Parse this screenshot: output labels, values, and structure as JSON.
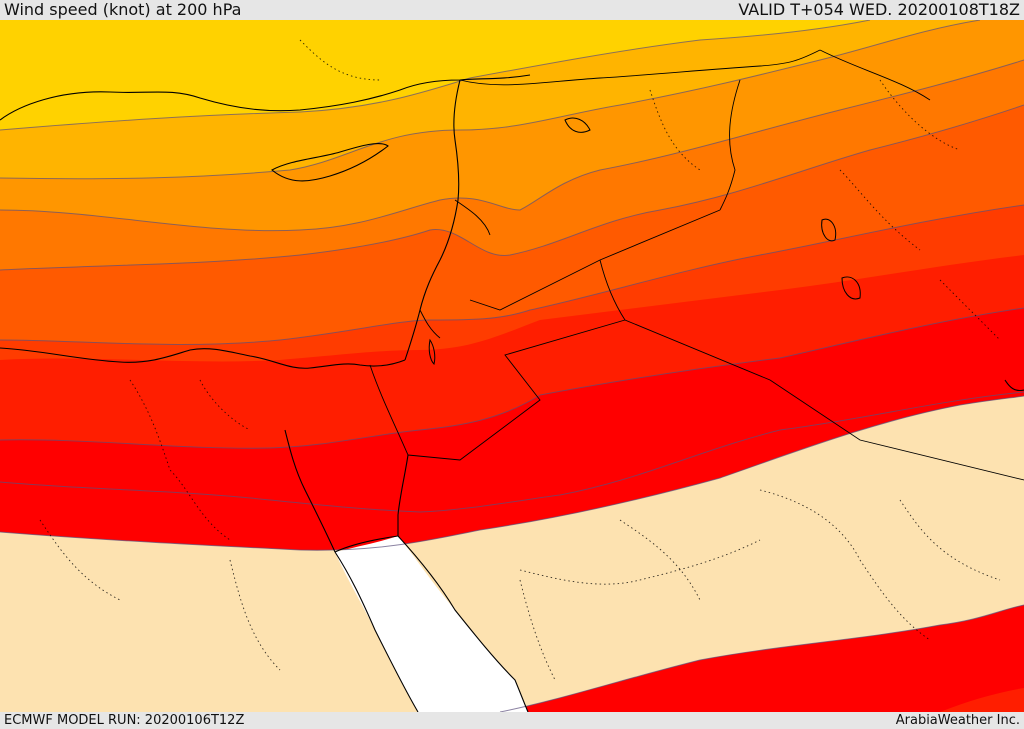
{
  "header": {
    "title": "Wind speed (knot) at 200 hPa",
    "valid": "VALID T+054 WED. 20200108T18Z"
  },
  "footer": {
    "run": "ECMWF MODEL RUN: 20200106T12Z",
    "credit": "ArabiaWeather Inc."
  },
  "colors": {
    "band_1": "#ffff00",
    "band_2": "#ffd200",
    "band_3": "#ffb400",
    "band_4": "#ff9600",
    "band_5": "#ff7800",
    "band_6": "#ff5a00",
    "band_7": "#ff3c00",
    "band_8": "#ff1e00",
    "band_9": "#ff0000",
    "low_wind": "#fde2b0",
    "sea": "#ffffff",
    "border": "#000000"
  },
  "icons": [
    "coastline",
    "country-border",
    "province-border",
    "contour-line"
  ]
}
